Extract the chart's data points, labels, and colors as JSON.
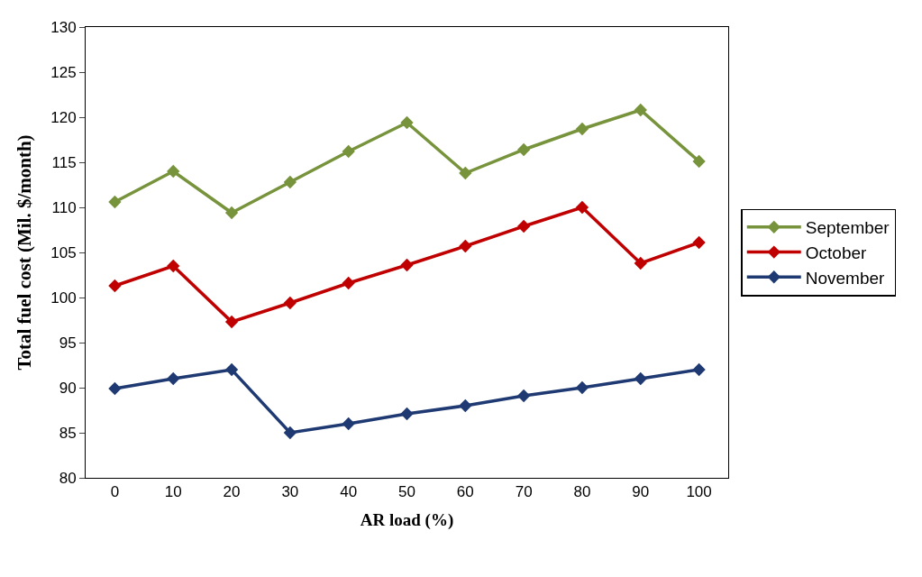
{
  "chart_data": {
    "type": "line",
    "xlabel": "AR load (%)",
    "ylabel": "Total fuel cost (Mil. $/month)",
    "categories": [
      "0",
      "10",
      "20",
      "30",
      "40",
      "50",
      "60",
      "70",
      "80",
      "90",
      "100"
    ],
    "series": [
      {
        "name": "September",
        "color": "#77933c",
        "values": [
          110.6,
          114.0,
          109.4,
          112.8,
          116.2,
          119.4,
          113.8,
          116.4,
          118.7,
          120.8,
          115.1
        ]
      },
      {
        "name": "October",
        "color": "#c00000",
        "values": [
          101.3,
          103.5,
          97.3,
          99.4,
          101.6,
          103.6,
          105.7,
          107.9,
          110.0,
          103.8,
          106.1
        ]
      },
      {
        "name": "November",
        "color": "#1f3a73",
        "values": [
          89.9,
          91.0,
          92.0,
          85.0,
          86.0,
          87.1,
          88.0,
          89.1,
          90.0,
          91.0,
          92.0
        ]
      }
    ],
    "ylim": [
      80,
      130
    ],
    "yticks": [
      80,
      85,
      90,
      95,
      100,
      105,
      110,
      115,
      120,
      125,
      130
    ],
    "legend": "right",
    "marker": "diamond",
    "line_style": "solid"
  }
}
